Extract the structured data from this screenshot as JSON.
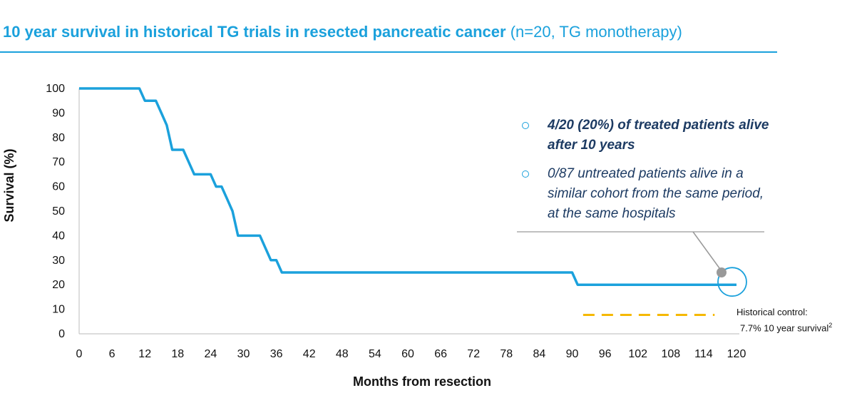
{
  "title": {
    "main": "10 year survival in historical TG trials in resected pancreatic cancer",
    "sub": "(n=20, TG monotherapy)"
  },
  "callout": {
    "items": [
      {
        "text": "4/20 (20%) of treated patients alive after 10 years",
        "bold": true
      },
      {
        "text": "0/87 untreated patients alive in a similar cohort from the same period, at the same hospitals",
        "bold": false
      }
    ]
  },
  "historical_control": {
    "line1": "Historical control:",
    "line2": "7.7% 10 year survival",
    "footnote": "2"
  },
  "colors": {
    "accent": "#1ba1dc",
    "curve": "#1ba1dc",
    "historical": "#f5b800",
    "callout_text": "#1d3b63",
    "pointer": "#999999"
  },
  "chart_data": {
    "type": "line",
    "xlabel": "Months from resection",
    "ylabel": "Survival (%)",
    "xlim": [
      0,
      120
    ],
    "ylim": [
      0,
      100
    ],
    "xticks": [
      0,
      6,
      12,
      18,
      24,
      30,
      36,
      42,
      48,
      54,
      60,
      66,
      72,
      78,
      84,
      90,
      96,
      102,
      108,
      114,
      120
    ],
    "yticks": [
      0,
      10,
      20,
      30,
      40,
      50,
      60,
      70,
      80,
      90,
      100
    ],
    "grid": false,
    "series": [
      {
        "x": [
          0,
          11,
          12,
          14,
          15,
          16,
          17,
          19,
          20,
          21,
          22,
          24,
          25,
          26,
          27,
          28,
          29,
          33,
          34,
          35,
          36,
          37,
          90,
          91,
          120
        ],
        "y": [
          100,
          100,
          95,
          95,
          90,
          85,
          75,
          75,
          70,
          65,
          65,
          65,
          60,
          60,
          55,
          50,
          40,
          40,
          35,
          30,
          30,
          25,
          25,
          20,
          20
        ]
      }
    ],
    "historical_control": {
      "y": 7.7,
      "x_range": [
        92,
        116
      ]
    },
    "highlight": {
      "x": 120,
      "y": 20
    }
  }
}
